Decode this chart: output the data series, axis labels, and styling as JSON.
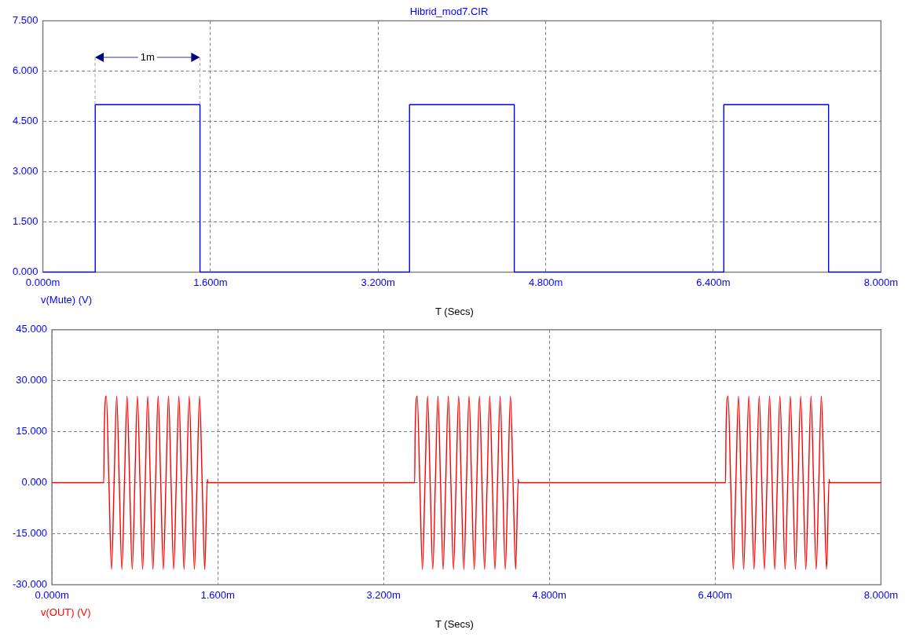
{
  "chart_data": [
    {
      "type": "step",
      "title": "Hibrid_mod7.CIR",
      "xlabel": "T (Secs)",
      "xlim": [
        0,
        8
      ],
      "xticks": [
        {
          "value": 0,
          "label": "0.000m"
        },
        {
          "value": 1.6,
          "label": "1.600m"
        },
        {
          "value": 3.2,
          "label": "3.200m"
        },
        {
          "value": 4.8,
          "label": "4.800m"
        },
        {
          "value": 6.4,
          "label": "6.400m"
        },
        {
          "value": 8,
          "label": "8.000m"
        }
      ],
      "ylim": [
        0,
        7.5
      ],
      "yticks": [
        {
          "value": 0,
          "label": "0.000"
        },
        {
          "value": 1.5,
          "label": "1.500"
        },
        {
          "value": 3,
          "label": "3.000"
        },
        {
          "value": 4.5,
          "label": "4.500"
        },
        {
          "value": 6,
          "label": "6.000"
        },
        {
          "value": 7.5,
          "label": "7.500"
        }
      ],
      "grid": true,
      "legend": "bottom left",
      "annotations": [
        "1m"
      ],
      "series": [
        {
          "name": "v(Mute) (V)",
          "color": "#0000ff",
          "x": [
            0,
            0.5,
            1.5,
            3.5,
            4.5,
            6.5,
            7.5,
            8
          ],
          "values": [
            0,
            5,
            0,
            5,
            0,
            5,
            0,
            0
          ]
        }
      ]
    },
    {
      "type": "line",
      "xlabel": "T (Secs)",
      "xlim": [
        0,
        8
      ],
      "xticks": [
        {
          "value": 0,
          "label": "0.000m"
        },
        {
          "value": 1.6,
          "label": "1.600m"
        },
        {
          "value": 3.2,
          "label": "3.200m"
        },
        {
          "value": 4.8,
          "label": "4.800m"
        },
        {
          "value": 6.4,
          "label": "6.400m"
        },
        {
          "value": 8,
          "label": "8.000m"
        }
      ],
      "ylim": [
        -30,
        45
      ],
      "yticks": [
        {
          "value": -30,
          "label": "-30.000"
        },
        {
          "value": -15,
          "label": "-15.000"
        },
        {
          "value": 0,
          "label": "0.000"
        },
        {
          "value": 15,
          "label": "15.000"
        },
        {
          "value": 30,
          "label": "30.000"
        },
        {
          "value": 45,
          "label": "45.000"
        }
      ],
      "grid": true,
      "legend": "bottom left",
      "series": [
        {
          "name": "v(OUT) (V)",
          "color": "#ff0000",
          "x": [
            0,
            0.5,
            0.505,
            0.525,
            0.55,
            0.575,
            0.6,
            0.625,
            0.65,
            0.675,
            0.7,
            0.725,
            0.75,
            0.775,
            0.8,
            0.825,
            0.85,
            0.875,
            0.9,
            0.925,
            0.95,
            0.975,
            1,
            1.025,
            1.05,
            1.075,
            1.1,
            1.125,
            1.15,
            1.175,
            1.2,
            1.225,
            1.25,
            1.275,
            1.3,
            1.325,
            1.35,
            1.375,
            1.4,
            1.425,
            1.45,
            1.475,
            1.5,
            1.505,
            3.5,
            3.505,
            3.525,
            3.55,
            3.575,
            3.6,
            3.625,
            3.65,
            3.675,
            3.7,
            3.725,
            3.75,
            3.775,
            3.8,
            3.825,
            3.85,
            3.875,
            3.9,
            3.925,
            3.95,
            3.975,
            4,
            4.025,
            4.05,
            4.075,
            4.1,
            4.125,
            4.15,
            4.175,
            4.2,
            4.225,
            4.25,
            4.275,
            4.3,
            4.325,
            4.35,
            4.375,
            4.4,
            4.425,
            4.45,
            4.475,
            4.5,
            4.505,
            6.5,
            6.505,
            6.525,
            6.55,
            6.575,
            6.6,
            6.625,
            6.65,
            6.675,
            6.7,
            6.725,
            6.75,
            6.775,
            6.8,
            6.825,
            6.85,
            6.875,
            6.9,
            6.925,
            6.95,
            6.975,
            7,
            7.025,
            7.05,
            7.075,
            7.1,
            7.125,
            7.15,
            7.175,
            7.2,
            7.225,
            7.25,
            7.275,
            7.3,
            7.325,
            7.35,
            7.375,
            7.4,
            7.425,
            7.45,
            7.475,
            7.5,
            7.505,
            8
          ],
          "values": [
            0,
            0,
            15,
            25.5,
            0,
            -25.5,
            0,
            25.5,
            0,
            -25.5,
            0,
            25.5,
            0,
            -25.5,
            0,
            25.5,
            0,
            -25.5,
            0,
            25.5,
            0,
            -25.5,
            0,
            25.5,
            0,
            -25.5,
            0,
            25.5,
            0,
            -25.5,
            0,
            25.5,
            0,
            -25.5,
            0,
            25.5,
            0,
            -25.5,
            0,
            25.5,
            0,
            -25.5,
            1,
            0,
            0,
            15,
            25.5,
            0,
            -25.5,
            0,
            25.5,
            0,
            -25.5,
            0,
            25.5,
            0,
            -25.5,
            0,
            25.5,
            0,
            -25.5,
            0,
            25.5,
            0,
            -25.5,
            0,
            25.5,
            0,
            -25.5,
            0,
            25.5,
            0,
            -25.5,
            0,
            25.5,
            0,
            -25.5,
            0,
            25.5,
            0,
            -25.5,
            0,
            25.5,
            0,
            -25.5,
            1,
            0,
            0,
            15,
            25.5,
            0,
            -25.5,
            0,
            25.5,
            0,
            -25.5,
            0,
            25.5,
            0,
            -25.5,
            0,
            25.5,
            0,
            -25.5,
            0,
            25.5,
            0,
            -25.5,
            0,
            25.5,
            0,
            -25.5,
            0,
            25.5,
            0,
            -25.5,
            0,
            25.5,
            0,
            -25.5,
            0,
            25.5,
            0,
            -25.5,
            0,
            25.5,
            0,
            -25.5,
            1,
            0,
            0
          ]
        }
      ]
    }
  ]
}
